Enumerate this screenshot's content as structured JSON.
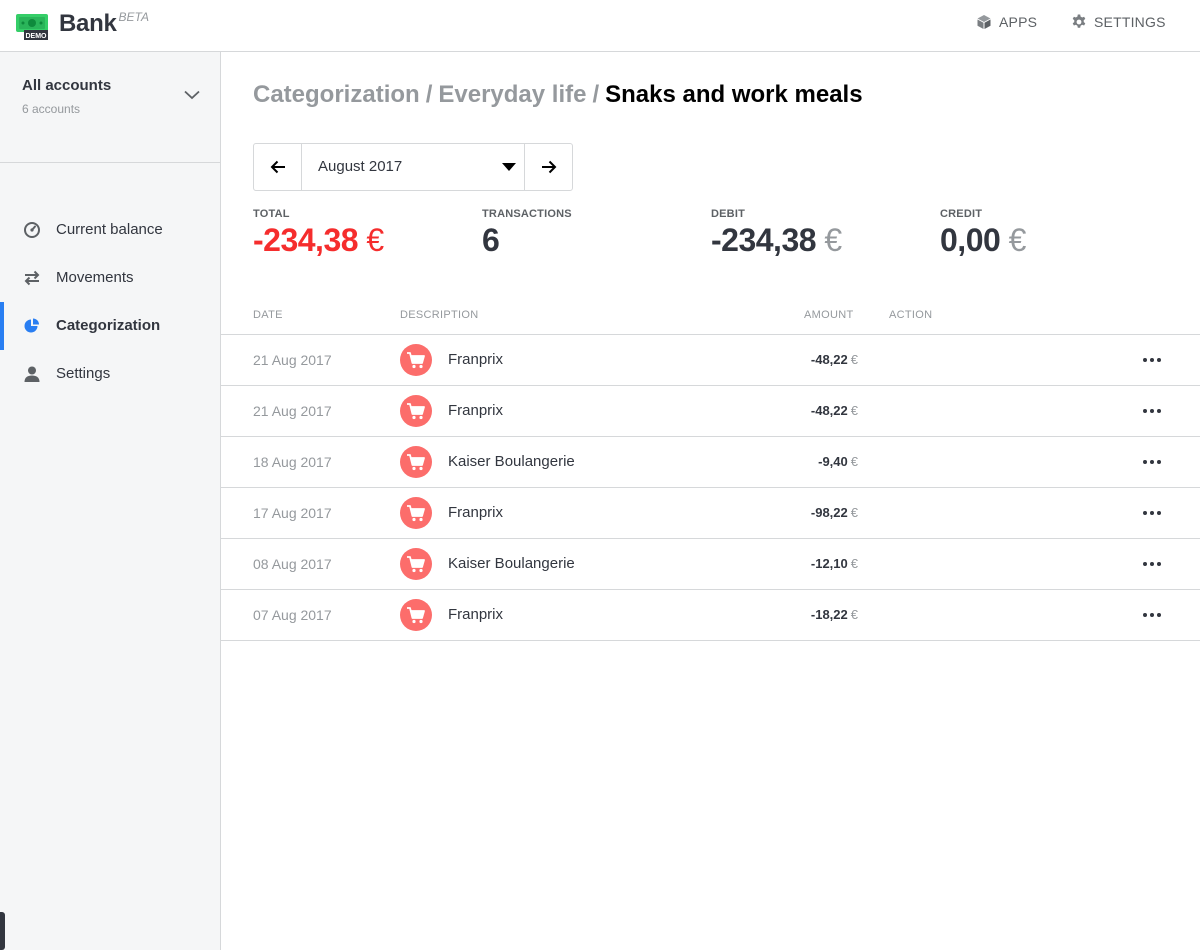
{
  "app": {
    "name": "Bank",
    "badge": "BETA",
    "logo_label": "DEMO"
  },
  "header": {
    "apps_label": "APPS",
    "settings_label": "SETTINGS"
  },
  "sidebar": {
    "account": {
      "title": "All accounts",
      "subtitle": "6 accounts"
    },
    "items": [
      {
        "label": "Current balance",
        "icon": "gauge-icon"
      },
      {
        "label": "Movements",
        "icon": "transfer-arrows-icon"
      },
      {
        "label": "Categorization",
        "icon": "pie-chart-icon",
        "active": true
      },
      {
        "label": "Settings",
        "icon": "user-icon"
      }
    ]
  },
  "breadcrumb": {
    "level1": "Categorization",
    "separator": "/",
    "level2": "Everyday life",
    "current": "Snaks and work meals"
  },
  "month_selector": {
    "value": "August 2017"
  },
  "stats": {
    "total": {
      "label": "TOTAL",
      "value": "-234,38",
      "currency": "€"
    },
    "transactions": {
      "label": "TRANSACTIONS",
      "value": "6"
    },
    "debit": {
      "label": "DEBIT",
      "value": "-234,38",
      "currency": "€"
    },
    "credit": {
      "label": "CREDIT",
      "value": "0,00",
      "currency": "€"
    }
  },
  "table": {
    "headers": {
      "date": "DATE",
      "description": "DESCRIPTION",
      "amount": "AMOUNT",
      "action": "ACTION"
    },
    "rows": [
      {
        "date": "21 Aug 2017",
        "description": "Franprix",
        "amount": "-48,22",
        "currency": "€"
      },
      {
        "date": "21 Aug 2017",
        "description": "Franprix",
        "amount": "-48,22",
        "currency": "€"
      },
      {
        "date": "18 Aug 2017",
        "description": "Kaiser Boulangerie",
        "amount": "-9,40",
        "currency": "€"
      },
      {
        "date": "17 Aug 2017",
        "description": "Franprix",
        "amount": "-98,22",
        "currency": "€"
      },
      {
        "date": "08 Aug 2017",
        "description": "Kaiser Boulangerie",
        "amount": "-12,10",
        "currency": "€"
      },
      {
        "date": "07 Aug 2017",
        "description": "Franprix",
        "amount": "-18,22",
        "currency": "€"
      }
    ]
  },
  "colors": {
    "accent": "#297ef2",
    "negative": "#f52d2d",
    "category": "#fc6d6b",
    "logo": "#35ce68"
  }
}
